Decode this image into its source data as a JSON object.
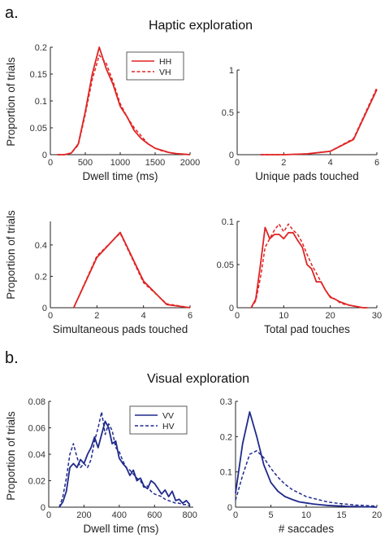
{
  "figure": {
    "section_a": {
      "letter": "a.",
      "heading": "Haptic exploration"
    },
    "section_b": {
      "letter": "b.",
      "heading": "Visual exploration"
    },
    "ylabel": "Proportion of trials"
  },
  "colors": {
    "red": "#e02424",
    "blue": "#1f2a8c"
  },
  "chart_data": [
    {
      "id": "haptic-dwell",
      "type": "line",
      "xlabel": "Dwell time (ms)",
      "xlim": [
        0,
        2000
      ],
      "ylim": [
        0,
        0.2
      ],
      "xticks": [
        "0",
        "500",
        "1000",
        "1500",
        "2000"
      ],
      "yticks": [
        "0",
        "0.05",
        "0.1",
        "0.15",
        "0.2"
      ],
      "xtick_values": [
        0,
        500,
        1000,
        1500,
        2000
      ],
      "ytick_values": [
        0,
        0.05,
        0.1,
        0.15,
        0.2
      ],
      "legend": {
        "position": "top-right",
        "entries": [
          "HH",
          "VH"
        ]
      },
      "series": [
        {
          "name": "HH",
          "color": "red",
          "dash": false,
          "x": [
            100,
            200,
            300,
            400,
            500,
            600,
            700,
            800,
            900,
            1000,
            1100,
            1200,
            1300,
            1400,
            1500,
            1600,
            1700,
            1800,
            1900,
            2000
          ],
          "y": [
            0,
            0,
            0.003,
            0.02,
            0.08,
            0.15,
            0.2,
            0.16,
            0.13,
            0.09,
            0.07,
            0.045,
            0.03,
            0.02,
            0.012,
            0.008,
            0.004,
            0.002,
            0.001,
            0
          ]
        },
        {
          "name": "VH",
          "color": "red",
          "dash": true,
          "x": [
            100,
            200,
            300,
            400,
            500,
            600,
            700,
            800,
            900,
            1000,
            1100,
            1200,
            1300,
            1400,
            1500,
            1600,
            1700,
            1800,
            1900,
            2000
          ],
          "y": [
            0,
            0,
            0.003,
            0.018,
            0.075,
            0.14,
            0.185,
            0.17,
            0.135,
            0.095,
            0.07,
            0.05,
            0.035,
            0.02,
            0.012,
            0.007,
            0.004,
            0.002,
            0.001,
            0
          ]
        }
      ]
    },
    {
      "id": "haptic-unique",
      "type": "line",
      "xlabel": "Unique pads touched",
      "xlim": [
        0,
        6
      ],
      "ylim": [
        0,
        1
      ],
      "xticks": [
        "0",
        "2",
        "4",
        "6"
      ],
      "yticks": [
        "0",
        "0.5",
        "1"
      ],
      "xtick_values": [
        0,
        2,
        4,
        6
      ],
      "ytick_values": [
        0,
        0.5,
        1
      ],
      "series": [
        {
          "name": "HH",
          "color": "red",
          "dash": false,
          "x": [
            1,
            2,
            3,
            4,
            5,
            6
          ],
          "y": [
            0,
            0,
            0.01,
            0.04,
            0.18,
            0.77
          ]
        },
        {
          "name": "VH",
          "color": "red",
          "dash": true,
          "x": [
            1,
            2,
            3,
            4,
            5,
            6
          ],
          "y": [
            0,
            0,
            0.01,
            0.04,
            0.19,
            0.79
          ]
        }
      ]
    },
    {
      "id": "haptic-simultaneous",
      "type": "line",
      "xlabel": "Simultaneous pads touched",
      "xlim": [
        0,
        6
      ],
      "ylim": [
        0,
        0.55
      ],
      "xticks": [
        "0",
        "2",
        "4",
        "6"
      ],
      "yticks": [
        "0",
        "0.2",
        "0.4"
      ],
      "xtick_values": [
        0,
        2,
        4,
        6
      ],
      "ytick_values": [
        0,
        0.2,
        0.4
      ],
      "series": [
        {
          "name": "HH",
          "color": "red",
          "dash": false,
          "x": [
            1,
            2,
            3,
            4,
            5,
            6
          ],
          "y": [
            0,
            0.32,
            0.48,
            0.17,
            0.02,
            0
          ]
        },
        {
          "name": "VH",
          "color": "red",
          "dash": true,
          "x": [
            1,
            2,
            3,
            4,
            5,
            6
          ],
          "y": [
            0,
            0.33,
            0.475,
            0.16,
            0.025,
            0
          ]
        }
      ]
    },
    {
      "id": "haptic-total",
      "type": "line",
      "xlabel": "Total pad touches",
      "xlim": [
        0,
        30
      ],
      "ylim": [
        0,
        0.1
      ],
      "xticks": [
        "0",
        "10",
        "20",
        "30"
      ],
      "yticks": [
        "0",
        "0.05",
        "0.1"
      ],
      "xtick_values": [
        0,
        10,
        20,
        30
      ],
      "ytick_values": [
        0,
        0.05,
        0.1
      ],
      "series": [
        {
          "name": "HH",
          "color": "red",
          "dash": false,
          "x": [
            3,
            4,
            5,
            6,
            7,
            8,
            9,
            10,
            11,
            12,
            13,
            14,
            15,
            16,
            17,
            18,
            19,
            20,
            21,
            22,
            23,
            24,
            25,
            26,
            27,
            28
          ],
          "y": [
            0,
            0.01,
            0.05,
            0.093,
            0.08,
            0.085,
            0.085,
            0.08,
            0.087,
            0.087,
            0.078,
            0.07,
            0.05,
            0.045,
            0.03,
            0.03,
            0.02,
            0.012,
            0.01,
            0.007,
            0.005,
            0.003,
            0.002,
            0.001,
            0,
            0
          ]
        },
        {
          "name": "VH",
          "color": "red",
          "dash": true,
          "x": [
            3,
            4,
            5,
            6,
            7,
            8,
            9,
            10,
            11,
            12,
            13,
            14,
            15,
            16,
            17,
            18,
            19,
            20,
            21,
            22,
            23,
            24,
            25,
            26,
            27,
            28
          ],
          "y": [
            0,
            0.008,
            0.035,
            0.07,
            0.08,
            0.09,
            0.097,
            0.088,
            0.097,
            0.09,
            0.085,
            0.075,
            0.062,
            0.05,
            0.04,
            0.03,
            0.02,
            0.013,
            0.01,
            0.006,
            0.004,
            0.003,
            0.002,
            0.001,
            0,
            0
          ]
        }
      ]
    },
    {
      "id": "visual-dwell",
      "type": "line",
      "xlabel": "Dwell time (ms)",
      "xlim": [
        0,
        820
      ],
      "ylim": [
        0,
        0.08
      ],
      "xticks": [
        "0",
        "200",
        "400",
        "600",
        "800"
      ],
      "yticks": [
        "0",
        "0.02",
        "0.04",
        "0.06",
        "0.08"
      ],
      "xtick_values": [
        0,
        200,
        400,
        600,
        800
      ],
      "ytick_values": [
        0,
        0.02,
        0.04,
        0.06,
        0.08
      ],
      "legend": {
        "position": "top-right",
        "entries": [
          "VV",
          "HV"
        ]
      },
      "series": [
        {
          "name": "VV",
          "color": "blue",
          "dash": false,
          "x": [
            60,
            80,
            100,
            120,
            140,
            160,
            180,
            200,
            220,
            240,
            260,
            280,
            300,
            320,
            340,
            360,
            380,
            400,
            420,
            440,
            460,
            480,
            500,
            520,
            540,
            560,
            580,
            600,
            620,
            640,
            660,
            680,
            700,
            720,
            740,
            760,
            780,
            800
          ],
          "y": [
            0,
            0.004,
            0.012,
            0.03,
            0.033,
            0.03,
            0.036,
            0.033,
            0.04,
            0.045,
            0.053,
            0.045,
            0.055,
            0.065,
            0.06,
            0.048,
            0.05,
            0.037,
            0.033,
            0.03,
            0.024,
            0.028,
            0.02,
            0.022,
            0.016,
            0.014,
            0.02,
            0.018,
            0.014,
            0.01,
            0.013,
            0.008,
            0.012,
            0.005,
            0.006,
            0.003,
            0.005,
            0.002
          ]
        },
        {
          "name": "HV",
          "color": "blue",
          "dash": true,
          "x": [
            60,
            80,
            100,
            120,
            140,
            160,
            180,
            200,
            220,
            240,
            260,
            280,
            300,
            320,
            340,
            360,
            380,
            400,
            420,
            440,
            460,
            480,
            500,
            520,
            540,
            560,
            580,
            600,
            620,
            640,
            660,
            680,
            700,
            720,
            740,
            760,
            780,
            800
          ],
          "y": [
            0,
            0.008,
            0.022,
            0.04,
            0.048,
            0.038,
            0.03,
            0.033,
            0.03,
            0.036,
            0.05,
            0.06,
            0.072,
            0.055,
            0.063,
            0.058,
            0.045,
            0.042,
            0.035,
            0.03,
            0.028,
            0.025,
            0.022,
            0.02,
            0.015,
            0.016,
            0.012,
            0.01,
            0.009,
            0.008,
            0.006,
            0.005,
            0.004,
            0.003,
            0.003,
            0.002,
            0.002,
            0.001
          ]
        }
      ]
    },
    {
      "id": "visual-saccades",
      "type": "line",
      "xlabel": "# saccades",
      "xlim": [
        0,
        20
      ],
      "ylim": [
        0,
        0.3
      ],
      "xticks": [
        "0",
        "5",
        "10",
        "15",
        "20"
      ],
      "yticks": [
        "0",
        "0.1",
        "0.2",
        "0.3"
      ],
      "xtick_values": [
        0,
        5,
        10,
        15,
        20
      ],
      "ytick_values": [
        0,
        0.1,
        0.2,
        0.3
      ],
      "series": [
        {
          "name": "VV",
          "color": "blue",
          "dash": false,
          "x": [
            0,
            1,
            2,
            3,
            4,
            5,
            6,
            7,
            8,
            9,
            10,
            11,
            12,
            13,
            14,
            15,
            16,
            17,
            18,
            19,
            20
          ],
          "y": [
            0.04,
            0.18,
            0.27,
            0.2,
            0.12,
            0.07,
            0.045,
            0.03,
            0.022,
            0.015,
            0.012,
            0.009,
            0.007,
            0.005,
            0.004,
            0.003,
            0.002,
            0.002,
            0.001,
            0.001,
            0
          ]
        },
        {
          "name": "HV",
          "color": "blue",
          "dash": true,
          "x": [
            0,
            1,
            2,
            3,
            4,
            5,
            6,
            7,
            8,
            9,
            10,
            11,
            12,
            13,
            14,
            15,
            16,
            17,
            18,
            19,
            20
          ],
          "y": [
            0.02,
            0.09,
            0.15,
            0.16,
            0.14,
            0.11,
            0.085,
            0.065,
            0.05,
            0.04,
            0.03,
            0.025,
            0.02,
            0.015,
            0.012,
            0.01,
            0.008,
            0.006,
            0.005,
            0.004,
            0.003
          ]
        }
      ]
    }
  ]
}
